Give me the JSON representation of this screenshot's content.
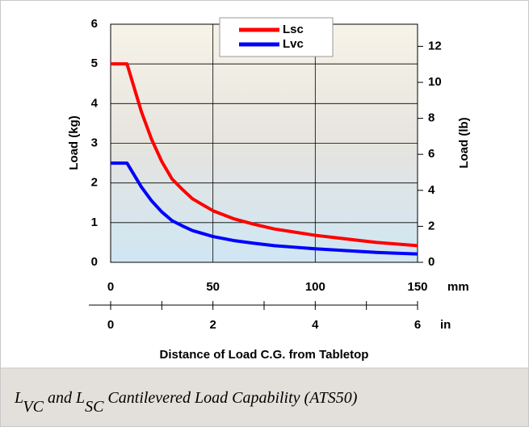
{
  "chart_data": {
    "type": "line",
    "x_label": "Distance of Load C.G. from Tabletop",
    "y_label": "Load (kg)",
    "y2_label": "Load (lb)",
    "x": [
      0,
      8,
      15,
      20,
      25,
      30,
      35,
      40,
      50,
      60,
      70,
      80,
      90,
      100,
      110,
      120,
      130,
      140,
      150
    ],
    "series": [
      {
        "name": "Lsc",
        "color": "#ff0000",
        "values": [
          5,
          5,
          3.8,
          3.1,
          2.54,
          2.1,
          1.84,
          1.6,
          1.3,
          1.1,
          0.96,
          0.84,
          0.76,
          0.68,
          0.62,
          0.56,
          0.5,
          0.46,
          0.42
        ]
      },
      {
        "name": "Lvc",
        "color": "#0000ff",
        "values": [
          2.5,
          2.5,
          1.9,
          1.55,
          1.27,
          1.05,
          0.92,
          0.8,
          0.65,
          0.55,
          0.48,
          0.42,
          0.38,
          0.34,
          0.31,
          0.28,
          0.25,
          0.23,
          0.21
        ]
      }
    ],
    "xlim": [
      0,
      150
    ],
    "xticks": [
      0,
      50,
      100,
      150
    ],
    "x_unit": "mm",
    "x2lim": [
      0,
      6
    ],
    "x2ticks": [
      0,
      2,
      4,
      6
    ],
    "x2minor_ticks": [
      1,
      3,
      5
    ],
    "x2_unit": "in",
    "ylim": [
      0,
      6
    ],
    "yticks": [
      0,
      1,
      2,
      3,
      4,
      5,
      6
    ],
    "y2lim": [
      0,
      13.23
    ],
    "y2ticks": [
      0,
      2,
      4,
      6,
      8,
      10,
      12
    ],
    "grid": true,
    "legend": "top-center"
  },
  "caption": {
    "parts": [
      {
        "text": "L",
        "subscript": false
      },
      {
        "text": "VC",
        "subscript": true
      },
      {
        "text": " and L",
        "subscript": false
      },
      {
        "text": "SC",
        "subscript": true
      },
      {
        "text": " Cantilevered Load Capability (ATS50)",
        "subscript": false
      }
    ]
  }
}
